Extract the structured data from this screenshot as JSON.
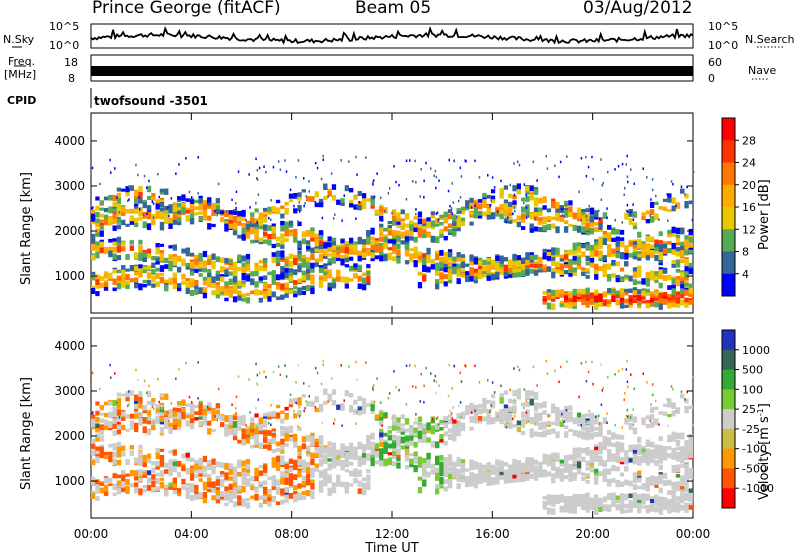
{
  "header": {
    "station": "Prince George (fitACF)",
    "beam": "Beam 05",
    "date": "03/Aug/2012"
  },
  "aux": {
    "nsky_label": "N.Sky",
    "nsearch_label": "N.Search",
    "freq_label_1": "Freq.",
    "freq_label_2": "[MHz]",
    "nave_label": "Nave",
    "cpid_label": "CPID",
    "cpid_text": "twofsound -3501",
    "noise_left_ticks": [
      "10^5",
      "10^0"
    ],
    "noise_right_ticks": [
      "10^5",
      "10^0"
    ],
    "freq_ticks": [
      "18",
      "8"
    ],
    "nave_ticks": [
      "60",
      "0"
    ]
  },
  "chart_data": [
    {
      "type": "heatmap",
      "name": "power-panel",
      "ylabel": "Slant Range [km]",
      "yticks": [
        1000,
        2000,
        3000,
        4000
      ],
      "ylim": [
        180,
        4620
      ],
      "xlim": [
        0,
        24
      ],
      "colorbar": {
        "label": "Power [dB]",
        "ticks": [
          "28",
          "24",
          "20",
          "16",
          "12",
          "8",
          "4"
        ],
        "colors": [
          "#ff0000",
          "#ff3300",
          "#ff7700",
          "#ffaa00",
          "#e8c800",
          "#55aa55",
          "#336699",
          "#0000ff"
        ]
      }
    },
    {
      "type": "heatmap",
      "name": "velocity-panel",
      "ylabel": "Slant Range [km]",
      "yticks": [
        1000,
        2000,
        3000,
        4000
      ],
      "ylim": [
        180,
        4620
      ],
      "xlim": [
        0,
        24
      ],
      "xlabel": "Time UT",
      "xticks": [
        "00:00",
        "04:00",
        "08:00",
        "12:00",
        "16:00",
        "20:00",
        "00:00"
      ],
      "colorbar": {
        "label": "Velocity [m s",
        "label_sup": "-1",
        "label_end": "]",
        "ticks": [
          "1000",
          "500",
          "100",
          "25",
          "-25",
          "-100",
          "-500",
          "-1000"
        ],
        "colors": [
          "#2233bb",
          "#336655",
          "#33aa33",
          "#77cc33",
          "#cccccc",
          "#ccbb44",
          "#ff9900",
          "#ff5500",
          "#ff0000"
        ]
      }
    }
  ]
}
